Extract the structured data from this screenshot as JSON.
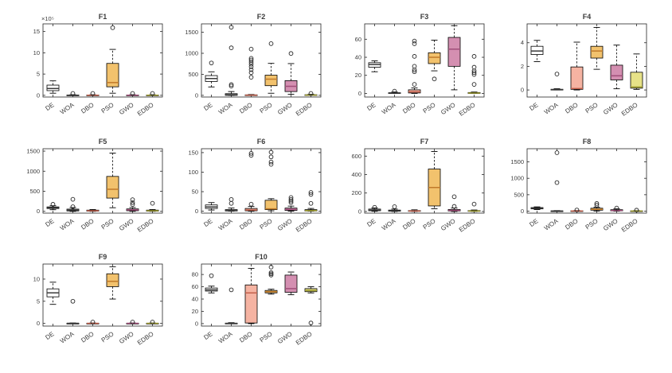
{
  "figure": {
    "background": "#ffffff",
    "axis_color": "#262626",
    "tick_label_color": "#3b3b3b",
    "algorithms": [
      "DE",
      "WOA",
      "DBO",
      "PSO",
      "GWO",
      "EDBO"
    ],
    "box_colors": {
      "DE": "#ffffff",
      "WOA": "#ffffff",
      "DBO": "#f5b3a2",
      "PSO": "#f2c26d",
      "GWO": "#d48fb1",
      "EDBO": "#e7e288"
    },
    "median_colors": {
      "DE": "#3a3a3a",
      "WOA": "#3a3a3a",
      "DBO": "#c2604c",
      "PSO": "#c07a2a",
      "GWO": "#a04e79",
      "EDBO": "#9e9c2f"
    }
  },
  "chart_data": [
    {
      "type": "box",
      "title": "F1",
      "grid": {
        "row": 0,
        "col": 0
      },
      "ylim": [
        -0.4,
        16.8
      ],
      "yticks": [
        0,
        5,
        10,
        15
      ],
      "y_multiplier_label": "×10⁵",
      "categories": [
        "DE",
        "WOA",
        "DBO",
        "PSO",
        "GWO",
        "EDBO"
      ],
      "boxes": [
        {
          "cat": "DE",
          "q1": 1.1,
          "q3": 2.4,
          "median": 1.6,
          "whisker_low": 0.5,
          "whisker_high": 3.4,
          "outliers": []
        },
        {
          "cat": "WOA",
          "q1": 0,
          "q3": 0.08,
          "median": 0.03,
          "whisker_low": 0,
          "whisker_high": 0.15,
          "outliers": [
            0.45
          ]
        },
        {
          "cat": "DBO",
          "q1": 0,
          "q3": 0.08,
          "median": 0.03,
          "whisker_low": 0,
          "whisker_high": 0.15,
          "outliers": [
            0.45
          ]
        },
        {
          "cat": "PSO",
          "q1": 2.0,
          "q3": 7.5,
          "median": 3.0,
          "whisker_low": 0.5,
          "whisker_high": 10.8,
          "outliers": [
            15.9
          ]
        },
        {
          "cat": "GWO",
          "q1": 0,
          "q3": 0.08,
          "median": 0.03,
          "whisker_low": 0,
          "whisker_high": 0.15,
          "outliers": [
            0.45
          ]
        },
        {
          "cat": "EDBO",
          "q1": 0,
          "q3": 0.08,
          "median": 0.03,
          "whisker_low": 0,
          "whisker_high": 0.15,
          "outliers": [
            0.45
          ]
        }
      ]
    },
    {
      "type": "box",
      "title": "F2",
      "grid": {
        "row": 0,
        "col": 1
      },
      "ylim": [
        -40,
        1700
      ],
      "yticks": [
        0,
        500,
        1000,
        1500
      ],
      "categories": [
        "DE",
        "WOA",
        "DBO",
        "PSO",
        "GWO",
        "EDBO"
      ],
      "boxes": [
        {
          "cat": "DE",
          "q1": 330,
          "q3": 470,
          "median": 400,
          "whisker_low": 200,
          "whisker_high": 560,
          "outliers": [
            770
          ]
        },
        {
          "cat": "WOA",
          "q1": 0,
          "q3": 40,
          "median": 15,
          "whisker_low": 0,
          "whisker_high": 90,
          "outliers": [
            220,
            255,
            1130,
            1620
          ]
        },
        {
          "cat": "DBO",
          "q1": 0,
          "q3": 12,
          "median": 5,
          "whisker_low": 0,
          "whisker_high": 20,
          "outliers": [
            430,
            540,
            610,
            680,
            740,
            790,
            840,
            880,
            1100
          ]
        },
        {
          "cat": "PSO",
          "q1": 230,
          "q3": 480,
          "median": 385,
          "whisker_low": 50,
          "whisker_high": 760,
          "outliers": [
            1230
          ]
        },
        {
          "cat": "GWO",
          "q1": 90,
          "q3": 350,
          "median": 215,
          "whisker_low": 25,
          "whisker_high": 755,
          "outliers": [
            995
          ]
        },
        {
          "cat": "EDBO",
          "q1": 0,
          "q3": 15,
          "median": 6,
          "whisker_low": 0,
          "whisker_high": 25,
          "outliers": [
            45
          ]
        }
      ]
    },
    {
      "type": "box",
      "title": "F3",
      "grid": {
        "row": 0,
        "col": 2
      },
      "ylim": [
        -4,
        77
      ],
      "yticks": [
        0,
        20,
        40,
        60
      ],
      "categories": [
        "DE",
        "WOA",
        "DBO",
        "PSO",
        "GWO",
        "EDBO"
      ],
      "boxes": [
        {
          "cat": "DE",
          "q1": 29,
          "q3": 34,
          "median": 32,
          "whisker_low": 24,
          "whisker_high": 36,
          "outliers": []
        },
        {
          "cat": "WOA",
          "q1": 0,
          "q3": 0.8,
          "median": 0.3,
          "whisker_low": 0,
          "whisker_high": 1.5,
          "outliers": [
            2.5
          ]
        },
        {
          "cat": "DBO",
          "q1": 0.5,
          "q3": 4,
          "median": 1.8,
          "whisker_low": 0,
          "whisker_high": 6,
          "outliers": [
            10,
            24,
            26,
            30,
            41,
            55,
            58
          ]
        },
        {
          "cat": "PSO",
          "q1": 33,
          "q3": 45,
          "median": 40,
          "whisker_low": 25,
          "whisker_high": 59,
          "outliers": [
            16
          ]
        },
        {
          "cat": "GWO",
          "q1": 30,
          "q3": 62,
          "median": 49,
          "whisker_low": 4,
          "whisker_high": 75,
          "outliers": []
        },
        {
          "cat": "EDBO",
          "q1": 0,
          "q3": 1,
          "median": 0.4,
          "whisker_low": 0,
          "whisker_high": 1.5,
          "outliers": [
            10,
            21,
            23,
            25,
            29,
            41
          ]
        }
      ]
    },
    {
      "type": "box",
      "title": "F4",
      "grid": {
        "row": 0,
        "col": 3
      },
      "ylim": [
        -0.6,
        5.6
      ],
      "yticks": [
        0,
        2,
        4
      ],
      "categories": [
        "DE",
        "WOA",
        "DBO",
        "PSO",
        "GWO",
        "EDBO"
      ],
      "boxes": [
        {
          "cat": "DE",
          "q1": 3.0,
          "q3": 3.7,
          "median": 3.3,
          "whisker_low": 2.4,
          "whisker_high": 4.2,
          "outliers": []
        },
        {
          "cat": "WOA",
          "q1": 0,
          "q3": 0.06,
          "median": 0.02,
          "whisker_low": 0,
          "whisker_high": 0.1,
          "outliers": [
            1.35
          ]
        },
        {
          "cat": "DBO",
          "q1": 0.05,
          "q3": 1.95,
          "median": 0.12,
          "whisker_low": 0,
          "whisker_high": 4.05,
          "outliers": []
        },
        {
          "cat": "PSO",
          "q1": 2.7,
          "q3": 3.7,
          "median": 3.3,
          "whisker_low": 1.75,
          "whisker_high": 5.3,
          "outliers": []
        },
        {
          "cat": "GWO",
          "q1": 0.85,
          "q3": 2.1,
          "median": 1.2,
          "whisker_low": 0.1,
          "whisker_high": 3.8,
          "outliers": []
        },
        {
          "cat": "EDBO",
          "q1": 0.15,
          "q3": 1.5,
          "median": 0.25,
          "whisker_low": 0.05,
          "whisker_high": 3.05,
          "outliers": []
        }
      ]
    },
    {
      "type": "box",
      "title": "F5",
      "grid": {
        "row": 1,
        "col": 0
      },
      "ylim": [
        -45,
        1560
      ],
      "yticks": [
        0,
        500,
        1000,
        1500
      ],
      "categories": [
        "DE",
        "WOA",
        "DBO",
        "PSO",
        "GWO",
        "EDBO"
      ],
      "boxes": [
        {
          "cat": "DE",
          "q1": 70,
          "q3": 110,
          "median": 90,
          "whisker_low": 40,
          "whisker_high": 140,
          "outliers": [
            175
          ]
        },
        {
          "cat": "WOA",
          "q1": 10,
          "q3": 55,
          "median": 30,
          "whisker_low": 0,
          "whisker_high": 95,
          "outliers": [
            115,
            300
          ]
        },
        {
          "cat": "DBO",
          "q1": 5,
          "q3": 30,
          "median": 15,
          "whisker_low": 0,
          "whisker_high": 45,
          "outliers": []
        },
        {
          "cat": "PSO",
          "q1": 330,
          "q3": 870,
          "median": 550,
          "whisker_low": 90,
          "whisker_high": 1450,
          "outliers": []
        },
        {
          "cat": "GWO",
          "q1": 15,
          "q3": 60,
          "median": 35,
          "whisker_low": 0,
          "whisker_high": 95,
          "outliers": [
            170,
            215,
            290
          ]
        },
        {
          "cat": "EDBO",
          "q1": 5,
          "q3": 30,
          "median": 15,
          "whisker_low": 0,
          "whisker_high": 45,
          "outliers": [
            200
          ]
        }
      ]
    },
    {
      "type": "box",
      "title": "F6",
      "grid": {
        "row": 1,
        "col": 1
      },
      "ylim": [
        -5,
        160
      ],
      "yticks": [
        0,
        50,
        100,
        150
      ],
      "categories": [
        "DE",
        "WOA",
        "DBO",
        "PSO",
        "GWO",
        "EDBO"
      ],
      "boxes": [
        {
          "cat": "DE",
          "q1": 7,
          "q3": 16,
          "median": 11,
          "whisker_low": 3,
          "whisker_high": 22,
          "outliers": []
        },
        {
          "cat": "WOA",
          "q1": 0.5,
          "q3": 4,
          "median": 1.5,
          "whisker_low": 0,
          "whisker_high": 8,
          "outliers": [
            20,
            30
          ]
        },
        {
          "cat": "DBO",
          "q1": 1,
          "q3": 7,
          "median": 3,
          "whisker_low": 0,
          "whisker_high": 12,
          "outliers": [
            18,
            143,
            148
          ]
        },
        {
          "cat": "PSO",
          "q1": 4,
          "q3": 28,
          "median": 6,
          "whisker_low": 1,
          "whisker_high": 32,
          "outliers": [
            120,
            126,
            139,
            151
          ]
        },
        {
          "cat": "GWO",
          "q1": 2,
          "q3": 8,
          "median": 4.5,
          "whisker_low": 0,
          "whisker_high": 13,
          "outliers": [
            22,
            26,
            30,
            35
          ]
        },
        {
          "cat": "EDBO",
          "q1": 0.5,
          "q3": 4,
          "median": 1.5,
          "whisker_low": 0,
          "whisker_high": 7,
          "outliers": [
            20,
            43,
            48
          ]
        }
      ]
    },
    {
      "type": "box",
      "title": "F7",
      "grid": {
        "row": 1,
        "col": 2
      },
      "ylim": [
        -18,
        680
      ],
      "yticks": [
        0,
        200,
        400,
        600
      ],
      "categories": [
        "DE",
        "WOA",
        "DBO",
        "PSO",
        "GWO",
        "EDBO"
      ],
      "boxes": [
        {
          "cat": "DE",
          "q1": 8,
          "q3": 26,
          "median": 15,
          "whisker_low": 2,
          "whisker_high": 38,
          "outliers": [
            45
          ]
        },
        {
          "cat": "WOA",
          "q1": 3,
          "q3": 15,
          "median": 8,
          "whisker_low": 0,
          "whisker_high": 26,
          "outliers": [
            52
          ]
        },
        {
          "cat": "DBO",
          "q1": 2,
          "q3": 10,
          "median": 5,
          "whisker_low": 0,
          "whisker_high": 18,
          "outliers": []
        },
        {
          "cat": "PSO",
          "q1": 60,
          "q3": 460,
          "median": 260,
          "whisker_low": 30,
          "whisker_high": 650,
          "outliers": []
        },
        {
          "cat": "GWO",
          "q1": 5,
          "q3": 22,
          "median": 11,
          "whisker_low": 0,
          "whisker_high": 38,
          "outliers": [
            55,
            160
          ]
        },
        {
          "cat": "EDBO",
          "q1": 2,
          "q3": 10,
          "median": 5,
          "whisker_low": 0,
          "whisker_high": 16,
          "outliers": [
            80
          ]
        }
      ]
    },
    {
      "type": "box",
      "title": "F8",
      "grid": {
        "row": 1,
        "col": 3
      },
      "ylim": [
        -60,
        1900
      ],
      "yticks": [
        0,
        500,
        1000,
        1500
      ],
      "categories": [
        "DE",
        "WOA",
        "DBO",
        "PSO",
        "GWO",
        "EDBO"
      ],
      "boxes": [
        {
          "cat": "DE",
          "q1": 70,
          "q3": 110,
          "median": 90,
          "whisker_low": 50,
          "whisker_high": 130,
          "outliers": []
        },
        {
          "cat": "WOA",
          "q1": 0,
          "q3": 10,
          "median": 4,
          "whisker_low": 0,
          "whisker_high": 18,
          "outliers": [
            870,
            1780
          ]
        },
        {
          "cat": "DBO",
          "q1": 0,
          "q3": 12,
          "median": 5,
          "whisker_low": 0,
          "whisker_high": 20,
          "outliers": [
            35
          ]
        },
        {
          "cat": "PSO",
          "q1": 30,
          "q3": 90,
          "median": 55,
          "whisker_low": 5,
          "whisker_high": 120,
          "outliers": [
            185,
            235
          ]
        },
        {
          "cat": "GWO",
          "q1": 8,
          "q3": 45,
          "median": 20,
          "whisker_low": 0,
          "whisker_high": 70,
          "outliers": [
            95
          ]
        },
        {
          "cat": "EDBO",
          "q1": 0,
          "q3": 10,
          "median": 4,
          "whisker_low": 0,
          "whisker_high": 18,
          "outliers": [
            30
          ]
        }
      ]
    },
    {
      "type": "box",
      "title": "F9",
      "grid": {
        "row": 2,
        "col": 0
      },
      "ylim": [
        -0.6,
        13.4
      ],
      "yticks": [
        0,
        5,
        10
      ],
      "categories": [
        "DE",
        "WOA",
        "DBO",
        "PSO",
        "GWO",
        "EDBO"
      ],
      "boxes": [
        {
          "cat": "DE",
          "q1": 6.0,
          "q3": 7.8,
          "median": 6.9,
          "whisker_low": 4.3,
          "whisker_high": 9.3,
          "outliers": []
        },
        {
          "cat": "WOA",
          "q1": 0,
          "q3": 0.05,
          "median": 0.02,
          "whisker_low": 0,
          "whisker_high": 0.1,
          "outliers": [
            5.0
          ]
        },
        {
          "cat": "DBO",
          "q1": 0,
          "q3": 0.05,
          "median": 0.02,
          "whisker_low": 0,
          "whisker_high": 0.1,
          "outliers": [
            0.3
          ]
        },
        {
          "cat": "PSO",
          "q1": 8.3,
          "q3": 11.2,
          "median": 9.5,
          "whisker_low": 5.5,
          "whisker_high": 12.8,
          "outliers": []
        },
        {
          "cat": "GWO",
          "q1": 0,
          "q3": 0.05,
          "median": 0.02,
          "whisker_low": 0,
          "whisker_high": 0.1,
          "outliers": [
            0.3
          ]
        },
        {
          "cat": "EDBO",
          "q1": 0,
          "q3": 0.05,
          "median": 0.02,
          "whisker_low": 0,
          "whisker_high": 0.1,
          "outliers": [
            0.3
          ]
        }
      ]
    },
    {
      "type": "box",
      "title": "F10",
      "grid": {
        "row": 2,
        "col": 1
      },
      "ylim": [
        -4,
        97
      ],
      "yticks": [
        0,
        20,
        40,
        60,
        80
      ],
      "categories": [
        "DE",
        "WOA",
        "DBO",
        "PSO",
        "GWO",
        "EDBO"
      ],
      "boxes": [
        {
          "cat": "DE",
          "q1": 53,
          "q3": 58,
          "median": 55,
          "whisker_low": 50,
          "whisker_high": 61,
          "outliers": [
            78
          ]
        },
        {
          "cat": "WOA",
          "q1": 0,
          "q3": 0.8,
          "median": 0.3,
          "whisker_low": 0,
          "whisker_high": 1.5,
          "outliers": [
            55
          ]
        },
        {
          "cat": "DBO",
          "q1": 1,
          "q3": 63,
          "median": 50,
          "whisker_low": 0,
          "whisker_high": 90,
          "outliers": []
        },
        {
          "cat": "PSO",
          "q1": 50,
          "q3": 54,
          "median": 52,
          "whisker_low": 48,
          "whisker_high": 56,
          "outliers": [
            79,
            81,
            83,
            92
          ]
        },
        {
          "cat": "GWO",
          "q1": 51,
          "q3": 79,
          "median": 57,
          "whisker_low": 47,
          "whisker_high": 84,
          "outliers": []
        },
        {
          "cat": "EDBO",
          "q1": 52,
          "q3": 57,
          "median": 54,
          "whisker_low": 50,
          "whisker_high": 60,
          "outliers": [
            1
          ]
        }
      ]
    }
  ]
}
